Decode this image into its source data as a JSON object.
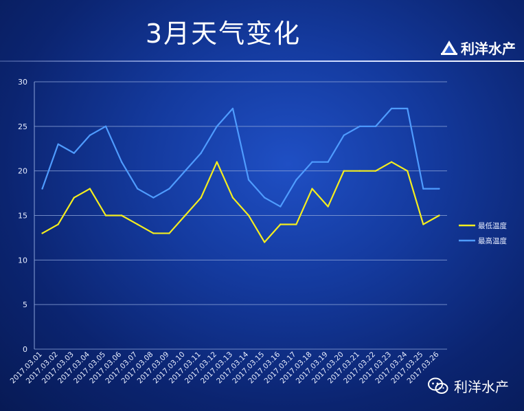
{
  "slide": {
    "title": "3月天气变化",
    "logo_text": "利洋水产",
    "watermark_text": "利洋水产",
    "colors": {
      "low": "#f5ee1e",
      "high": "#4f9cff",
      "grid": "#8aa2d8",
      "text": "#e8eeff"
    }
  },
  "chart_data": {
    "type": "line",
    "title": "",
    "xlabel": "",
    "ylabel": "",
    "ylim": [
      0,
      30
    ],
    "yticks": [
      0,
      5,
      10,
      15,
      20,
      25,
      30
    ],
    "grid": true,
    "legend_position": "right",
    "categories": [
      "2017.03.01",
      "2017.03.02",
      "2017.03.03",
      "2017.03.04",
      "2017.03.05",
      "2017.03.06",
      "2017.03.07",
      "2017.03.08",
      "2017.03.09",
      "2017.03.10",
      "2017.03.11",
      "2017.03.12",
      "2017.03.13",
      "2017.03.14",
      "2017.03.15",
      "2017.03.16",
      "2017.03.17",
      "2017.03.18",
      "2017.03.19",
      "2017.03.20",
      "2017.03.21",
      "2017.03.22",
      "2017.03.23",
      "2017.03.24",
      "2017.03.25",
      "2017.03.26"
    ],
    "series": [
      {
        "name": "最低温度",
        "color": "#f5ee1e",
        "values": [
          13,
          14,
          17,
          18,
          15,
          15,
          14,
          13,
          13,
          15,
          17,
          21,
          17,
          15,
          12,
          14,
          14,
          18,
          16,
          20,
          20,
          20,
          21,
          20,
          14,
          15
        ]
      },
      {
        "name": "最高温度",
        "color": "#4f9cff",
        "values": [
          18,
          23,
          22,
          24,
          25,
          21,
          18,
          17,
          18,
          20,
          22,
          25,
          27,
          19,
          17,
          16,
          19,
          21,
          21,
          24,
          25,
          25,
          27,
          27,
          18,
          18
        ]
      }
    ]
  }
}
